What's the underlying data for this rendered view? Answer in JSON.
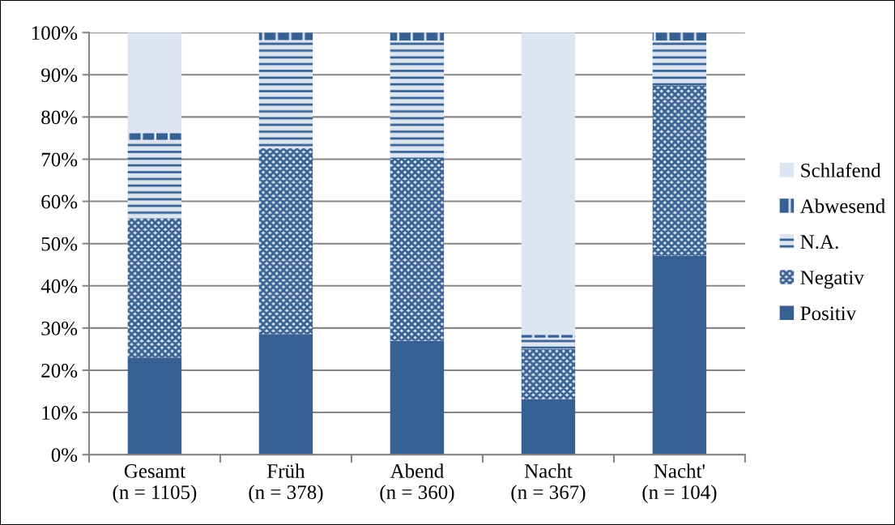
{
  "chart_data": {
    "type": "bar",
    "stacked": true,
    "categories": [
      "Gesamt\n(n = 1105)",
      "Früh\n(n = 378)",
      "Abend\n(n = 360)",
      "Nacht\n(n = 367)",
      "Nacht'\n(n = 104)"
    ],
    "series": [
      {
        "name": "Positiv",
        "color": "#376092",
        "values": [
          23.0,
          28.6,
          27.0,
          13.2,
          47.1
        ]
      },
      {
        "name": "Negativ",
        "color": "#376092",
        "values": [
          33.0,
          44.0,
          43.1,
          11.9,
          40.4
        ]
      },
      {
        "name": "N.A.",
        "color": "#376092",
        "values": [
          18.6,
          25.6,
          28.0,
          2.6,
          10.6
        ]
      },
      {
        "name": "Abwesend",
        "color": "#376092",
        "values": [
          1.6,
          1.8,
          1.9,
          0.7,
          1.9
        ]
      },
      {
        "name": "Schlafend",
        "color": "#dce6f2",
        "values": [
          23.8,
          0,
          0,
          71.6,
          0
        ]
      }
    ],
    "ylim": [
      0,
      100
    ],
    "yticks": [
      {
        "value": 0,
        "label": "0%"
      },
      {
        "value": 10,
        "label": "10%"
      },
      {
        "value": 20,
        "label": "20%"
      },
      {
        "value": 30,
        "label": "30%"
      },
      {
        "value": 40,
        "label": "40%"
      },
      {
        "value": 50,
        "label": "50%"
      },
      {
        "value": 60,
        "label": "60%"
      },
      {
        "value": 70,
        "label": "70%"
      },
      {
        "value": 80,
        "label": "80%"
      },
      {
        "value": 90,
        "label": "90%"
      },
      {
        "value": 100,
        "label": "100%"
      }
    ],
    "grid": "y",
    "legend": "right"
  }
}
